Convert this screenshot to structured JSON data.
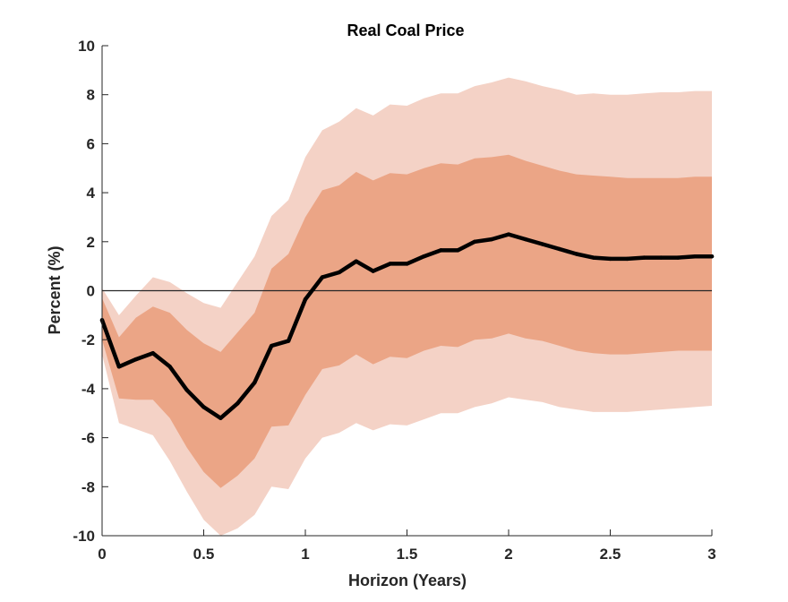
{
  "chart_data": {
    "type": "area",
    "title": "Real Coal Price",
    "xlabel": "Horizon (Years)",
    "ylabel": "Percent (%)",
    "xlim": [
      0,
      3
    ],
    "ylim": [
      -10,
      10
    ],
    "x_ticks": [
      0,
      0.5,
      1,
      1.5,
      2,
      2.5,
      3
    ],
    "x_tick_labels": [
      "0",
      "0.5",
      "1",
      "1.5",
      "2",
      "2.5",
      "3"
    ],
    "y_ticks": [
      -10,
      -8,
      -6,
      -4,
      -2,
      0,
      2,
      4,
      6,
      8,
      10
    ],
    "y_tick_labels": [
      "-10",
      "-8",
      "-6",
      "-4",
      "-2",
      "0",
      "2",
      "4",
      "6",
      "8",
      "10"
    ],
    "grid": false,
    "zero_line": true,
    "colors": {
      "outer_band": "#f4d2c6",
      "inner_band": "#eba586",
      "median_line": "#000000",
      "zero_line": "#262626",
      "axis": "#262626"
    },
    "x": [
      0,
      0.0833,
      0.1667,
      0.25,
      0.3333,
      0.4167,
      0.5,
      0.5833,
      0.6667,
      0.75,
      0.8333,
      0.9167,
      1.0,
      1.0833,
      1.1667,
      1.25,
      1.3333,
      1.4167,
      1.5,
      1.5833,
      1.6667,
      1.75,
      1.8333,
      1.9167,
      2.0,
      2.0833,
      2.1667,
      2.25,
      2.3333,
      2.4167,
      2.5,
      2.5833,
      2.6667,
      2.75,
      2.8333,
      2.9167,
      3.0
    ],
    "series": [
      {
        "role": "median",
        "values": [
          -1.2,
          -3.1,
          -2.8,
          -2.55,
          -3.1,
          -4.05,
          -4.75,
          -5.2,
          -4.6,
          -3.75,
          -2.25,
          -2.05,
          -0.35,
          0.55,
          0.75,
          1.2,
          0.8,
          1.1,
          1.1,
          1.4,
          1.65,
          1.65,
          2.0,
          2.1,
          2.3,
          2.1,
          1.9,
          1.7,
          1.5,
          1.35,
          1.3,
          1.3,
          1.35,
          1.35,
          1.35,
          1.4,
          1.4
        ]
      },
      {
        "role": "inner_band_upper",
        "values": [
          -0.3,
          -1.9,
          -1.1,
          -0.65,
          -0.9,
          -1.6,
          -2.15,
          -2.5,
          -1.7,
          -0.9,
          0.9,
          1.5,
          3.0,
          4.1,
          4.3,
          4.85,
          4.5,
          4.8,
          4.75,
          5.0,
          5.2,
          5.15,
          5.4,
          5.45,
          5.55,
          5.3,
          5.1,
          4.9,
          4.75,
          4.7,
          4.65,
          4.6,
          4.6,
          4.6,
          4.6,
          4.65,
          4.65
        ]
      },
      {
        "role": "inner_band_lower",
        "values": [
          -2.0,
          -4.4,
          -4.45,
          -4.45,
          -5.2,
          -6.4,
          -7.4,
          -8.05,
          -7.55,
          -6.85,
          -5.55,
          -5.5,
          -4.25,
          -3.2,
          -3.05,
          -2.6,
          -3.0,
          -2.7,
          -2.75,
          -2.45,
          -2.25,
          -2.3,
          -2.0,
          -1.95,
          -1.75,
          -1.95,
          -2.05,
          -2.25,
          -2.45,
          -2.55,
          -2.6,
          -2.6,
          -2.55,
          -2.5,
          -2.45,
          -2.45,
          -2.45
        ]
      },
      {
        "role": "outer_band_upper",
        "values": [
          0.1,
          -1.0,
          -0.2,
          0.55,
          0.35,
          -0.1,
          -0.5,
          -0.7,
          0.35,
          1.4,
          3.05,
          3.7,
          5.45,
          6.55,
          6.9,
          7.45,
          7.15,
          7.6,
          7.55,
          7.85,
          8.05,
          8.05,
          8.35,
          8.5,
          8.7,
          8.55,
          8.35,
          8.2,
          8.0,
          8.05,
          8.0,
          8.0,
          8.05,
          8.1,
          8.1,
          8.15,
          8.15
        ]
      },
      {
        "role": "outer_band_lower",
        "values": [
          -2.6,
          -5.4,
          -5.65,
          -5.9,
          -6.95,
          -8.2,
          -9.35,
          -10.0,
          -9.7,
          -9.15,
          -8.0,
          -8.1,
          -6.85,
          -6.0,
          -5.8,
          -5.4,
          -5.7,
          -5.45,
          -5.5,
          -5.25,
          -5.0,
          -5.0,
          -4.75,
          -4.6,
          -4.35,
          -4.45,
          -4.55,
          -4.75,
          -4.85,
          -4.95,
          -4.95,
          -4.95,
          -4.9,
          -4.85,
          -4.8,
          -4.75,
          -4.7
        ]
      }
    ]
  }
}
